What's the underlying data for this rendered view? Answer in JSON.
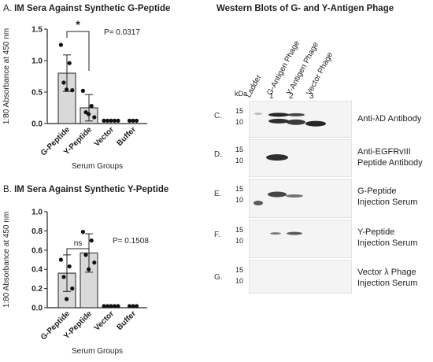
{
  "charts": {
    "A": {
      "letter": "A.",
      "title": "IM Sera Against Synthetic G-Peptide"
    },
    "B": {
      "letter": "B.",
      "title": "IM Sera Against Synthetic Y-Peptide"
    }
  },
  "chart_data": [
    {
      "type": "bar",
      "title": "IM Sera Against Synthetic G-Peptide",
      "xlabel": "Serum Groups",
      "ylabel": "1:80 Absorbance at 450 nm",
      "ylim": [
        0,
        1.5
      ],
      "yticks": [
        "0.0",
        "0.5",
        "1.0",
        "1.5"
      ],
      "categories": [
        "G-Peptide",
        "Y-Peptide",
        "Vector",
        "Buffer"
      ],
      "values": [
        0.8,
        0.25,
        0.0,
        0.0
      ],
      "errors": [
        0.29,
        0.21,
        0.01,
        0.01
      ],
      "points": [
        [
          1.25,
          0.96,
          0.65,
          0.53,
          0.54
        ],
        [
          0.52,
          0.28,
          0.18,
          0.1,
          0.15
        ],
        [
          0.02,
          0.02,
          0.02,
          0.02,
          0.02
        ],
        [
          0.02,
          0.02,
          0.02
        ]
      ],
      "significance": {
        "label": "*",
        "between": [
          0,
          1
        ]
      },
      "pvalue_text": "P= 0.0317",
      "grid": false,
      "bar_color": "#d9d9d9"
    },
    {
      "type": "bar",
      "title": "IM Sera Against Synthetic Y-Peptide",
      "xlabel": "Serum Groups",
      "ylabel": "1:80 Absorbance at 450 nm",
      "ylim": [
        0,
        1.0
      ],
      "yticks": [
        "0.0",
        "0.2",
        "0.4",
        "0.6",
        "0.8",
        "1.0"
      ],
      "categories": [
        "G-Peptide",
        "Y-Peptide",
        "Vector",
        "Buffer"
      ],
      "values": [
        0.36,
        0.57,
        0.0,
        0.0
      ],
      "errors": [
        0.19,
        0.2,
        0.01,
        0.01
      ],
      "points": [
        [
          0.5,
          0.43,
          0.32,
          0.2,
          0.09
        ],
        [
          0.79,
          0.7,
          0.55,
          0.47,
          0.4
        ],
        [
          0.0,
          0.0,
          0.0,
          0.0,
          0.0
        ],
        [
          0.0,
          0.0,
          0.0
        ]
      ],
      "significance": {
        "label": "ns",
        "between": [
          0,
          1
        ]
      },
      "pvalue_text": "P= 0.1508",
      "grid": false,
      "bar_color": "#d9d9d9"
    }
  ],
  "western": {
    "title": "Western Blots of G- and Y-Antigen Phage",
    "lanes": [
      "Ladder",
      "G-Antigen Phage",
      "Y-Antigen Phage",
      "Vector Phage"
    ],
    "lane_numbers": [
      "1",
      "2",
      "3"
    ],
    "kda_label": "kDa",
    "markers": [
      "15",
      "10"
    ],
    "panels": [
      {
        "letter": "C.",
        "label_lines": [
          "Anti-λD Antibody"
        ]
      },
      {
        "letter": "D.",
        "label_lines": [
          "Anti-EGFRvIII",
          "Peptide Antibody"
        ]
      },
      {
        "letter": "E.",
        "label_lines": [
          "G-Peptide",
          "Injection Serum"
        ]
      },
      {
        "letter": "F.",
        "label_lines": [
          "Y-Peptide",
          "Injection Serum"
        ]
      },
      {
        "letter": "G.",
        "label_lines": [
          "Vector λ Phage",
          "Injection Serum"
        ]
      }
    ]
  }
}
